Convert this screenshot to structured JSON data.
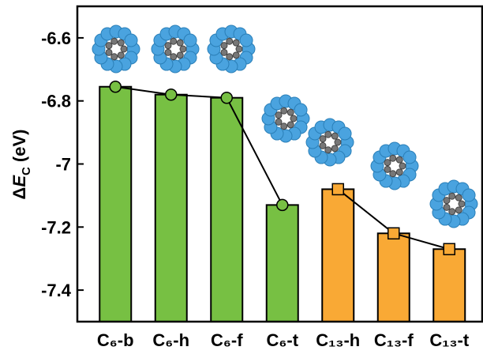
{
  "chart_data": {
    "type": "bar",
    "y_label": {
      "symbol": "Δ",
      "variable": "E",
      "subscript": "C",
      "unit": "(eV)"
    },
    "categories": [
      "C₆-b",
      "C₆-h",
      "C₆-f",
      "C₆-t",
      "C₁₃-h",
      "C₁₃-f",
      "C₁₃-t"
    ],
    "series": [
      {
        "color": "#77c043",
        "marker": "circle",
        "values": [
          -6.755,
          -6.78,
          -6.79,
          -7.13,
          null,
          null,
          null
        ]
      },
      {
        "color": "#f9a935",
        "marker": "square",
        "values": [
          null,
          null,
          null,
          null,
          -7.08,
          -7.22,
          -7.27
        ]
      }
    ],
    "ylim": [
      -7.5,
      -6.5
    ],
    "yticks": [
      -6.6,
      -6.8,
      -7.0,
      -7.2,
      -7.4
    ]
  }
}
